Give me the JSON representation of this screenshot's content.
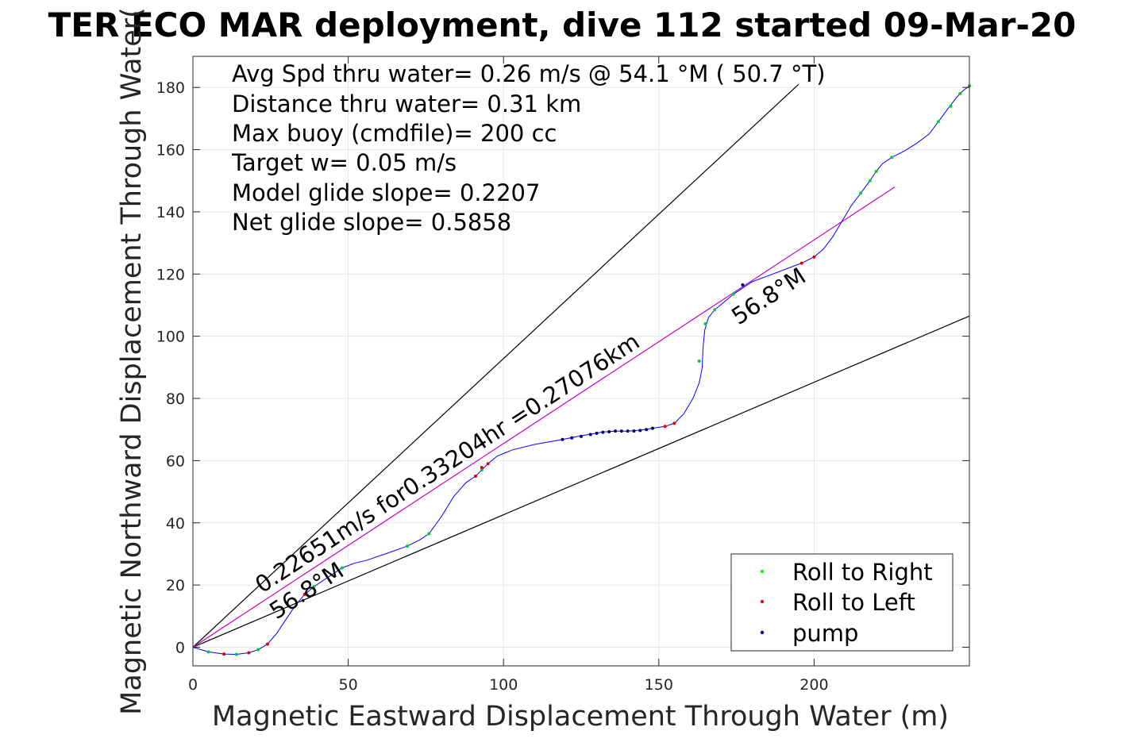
{
  "chart_data": {
    "type": "line",
    "title": "TER ECO MAR deployment, dive 112 started 09-Mar-20",
    "xlabel": "Magnetic Eastward Displacement Through Water (m)",
    "ylabel": "Magnetic Northward Displacement Through Water(",
    "xlim": [
      0,
      250
    ],
    "ylim": [
      -6,
      190
    ],
    "xticks": [
      0,
      50,
      100,
      150,
      200
    ],
    "yticks": [
      0,
      20,
      40,
      60,
      80,
      100,
      120,
      140,
      160,
      180
    ],
    "grid": true,
    "info_lines": [
      "Avg Spd thru water=  0.26 m/s @  54.1 °M ( 50.7 °T)",
      "Distance thru water=  0.31 km",
      "Max buoy (cmdfile)= 200 cc",
      "Target w= 0.05 m/s",
      "Model glide slope= 0.2207",
      "Net glide slope= 0.5858"
    ],
    "annotations": {
      "average_vector": "0.22651m/s for0.33204hr =0.27076km",
      "heading_start": "56.8°M",
      "heading_end": "56.8°M"
    },
    "legend": {
      "position": "bottom-right",
      "entries": [
        {
          "label": "Roll to Right",
          "color": "#00ff00"
        },
        {
          "label": "Roll to Left",
          "color": "#ff0000"
        },
        {
          "label": "pump",
          "color": "#000080"
        }
      ]
    },
    "reference_lines": [
      {
        "color": "#000000",
        "points": [
          [
            0,
            0
          ],
          [
            195,
            181
          ]
        ]
      },
      {
        "color": "#000000",
        "points": [
          [
            0,
            0
          ],
          [
            250,
            106.5
          ]
        ]
      },
      {
        "color": "#cc00cc",
        "points": [
          [
            0,
            0
          ],
          [
            226,
            148
          ]
        ]
      }
    ],
    "track": {
      "color": "#0000ff",
      "points": [
        [
          0,
          0
        ],
        [
          5,
          -1.5
        ],
        [
          10,
          -2.2
        ],
        [
          14,
          -2.3
        ],
        [
          18,
          -1.8
        ],
        [
          21,
          -0.8
        ],
        [
          24,
          1
        ],
        [
          27,
          4.5
        ],
        [
          30,
          9
        ],
        [
          33,
          13.5
        ],
        [
          36,
          17
        ],
        [
          39,
          19.5
        ],
        [
          42,
          21.5
        ],
        [
          45,
          23.5
        ],
        [
          48,
          25.5
        ],
        [
          52,
          27
        ],
        [
          56,
          28
        ],
        [
          62,
          30
        ],
        [
          69,
          32.5
        ],
        [
          73,
          34.5
        ],
        [
          76,
          36.5
        ],
        [
          80,
          42
        ],
        [
          84,
          48.5
        ],
        [
          88,
          53
        ],
        [
          91,
          55
        ],
        [
          93,
          57
        ],
        [
          95,
          59
        ],
        [
          98,
          61.5
        ],
        [
          103,
          63.5
        ],
        [
          110,
          65.2
        ],
        [
          119,
          66.8
        ],
        [
          124,
          67.8
        ],
        [
          128,
          68.5
        ],
        [
          132,
          69.2
        ],
        [
          136,
          69.5
        ],
        [
          140,
          69.5
        ],
        [
          144,
          69.8
        ],
        [
          148,
          70.4
        ],
        [
          152,
          71
        ],
        [
          155,
          72
        ],
        [
          158,
          75
        ],
        [
          161,
          80
        ],
        [
          163,
          85
        ],
        [
          164,
          90
        ],
        [
          164.2,
          96
        ],
        [
          164.8,
          102
        ],
        [
          166,
          106
        ],
        [
          168,
          108.5
        ],
        [
          171,
          111
        ],
        [
          174,
          113.5
        ],
        [
          177,
          115.5
        ],
        [
          180,
          117.5
        ],
        [
          184,
          119
        ],
        [
          188,
          120.5
        ],
        [
          192,
          122
        ],
        [
          196,
          123.5
        ],
        [
          200,
          125.5
        ],
        [
          203,
          128
        ],
        [
          206,
          132
        ],
        [
          209,
          137
        ],
        [
          212,
          142
        ],
        [
          215,
          146
        ],
        [
          218,
          150
        ],
        [
          220,
          153
        ],
        [
          222,
          155.5
        ],
        [
          225,
          157.5
        ],
        [
          229,
          159.5
        ],
        [
          233,
          162
        ],
        [
          237,
          165
        ],
        [
          240,
          169
        ],
        [
          243,
          173
        ],
        [
          246,
          177
        ],
        [
          248,
          179
        ],
        [
          250,
          180.5
        ]
      ]
    },
    "markers": [
      {
        "type": "green",
        "points": [
          [
            5,
            -1.5
          ],
          [
            14,
            -2.3
          ],
          [
            21,
            -0.8
          ],
          [
            39,
            19.5
          ],
          [
            48,
            25.5
          ],
          [
            69,
            32.5
          ],
          [
            76,
            36.5
          ],
          [
            93,
            57
          ],
          [
            163,
            92
          ],
          [
            165,
            104
          ],
          [
            168,
            108.5
          ],
          [
            174,
            113.5
          ],
          [
            215,
            146
          ],
          [
            218,
            150
          ],
          [
            220,
            153
          ],
          [
            225,
            157.5
          ],
          [
            240,
            169
          ],
          [
            244,
            174
          ],
          [
            247,
            178
          ],
          [
            250,
            180.5
          ]
        ]
      },
      {
        "type": "red",
        "points": [
          [
            10,
            -2.2
          ],
          [
            18,
            -1.8
          ],
          [
            24,
            1
          ],
          [
            36,
            17
          ],
          [
            91,
            55
          ],
          [
            93,
            57.8
          ],
          [
            95,
            59
          ],
          [
            152,
            71
          ],
          [
            155,
            72
          ],
          [
            196,
            123.5
          ],
          [
            200,
            125.5
          ]
        ]
      },
      {
        "type": "pump",
        "points": [
          [
            119,
            66.8
          ],
          [
            122,
            67.3
          ],
          [
            125,
            67.8
          ],
          [
            128,
            68.4
          ],
          [
            130,
            68.8
          ],
          [
            132,
            69.1
          ],
          [
            134,
            69.3
          ],
          [
            136,
            69.5
          ],
          [
            138,
            69.5
          ],
          [
            140,
            69.5
          ],
          [
            142,
            69.5
          ],
          [
            144,
            69.7
          ],
          [
            146,
            70
          ],
          [
            148,
            70.4
          ],
          [
            177,
            116.5
          ]
        ]
      }
    ]
  }
}
